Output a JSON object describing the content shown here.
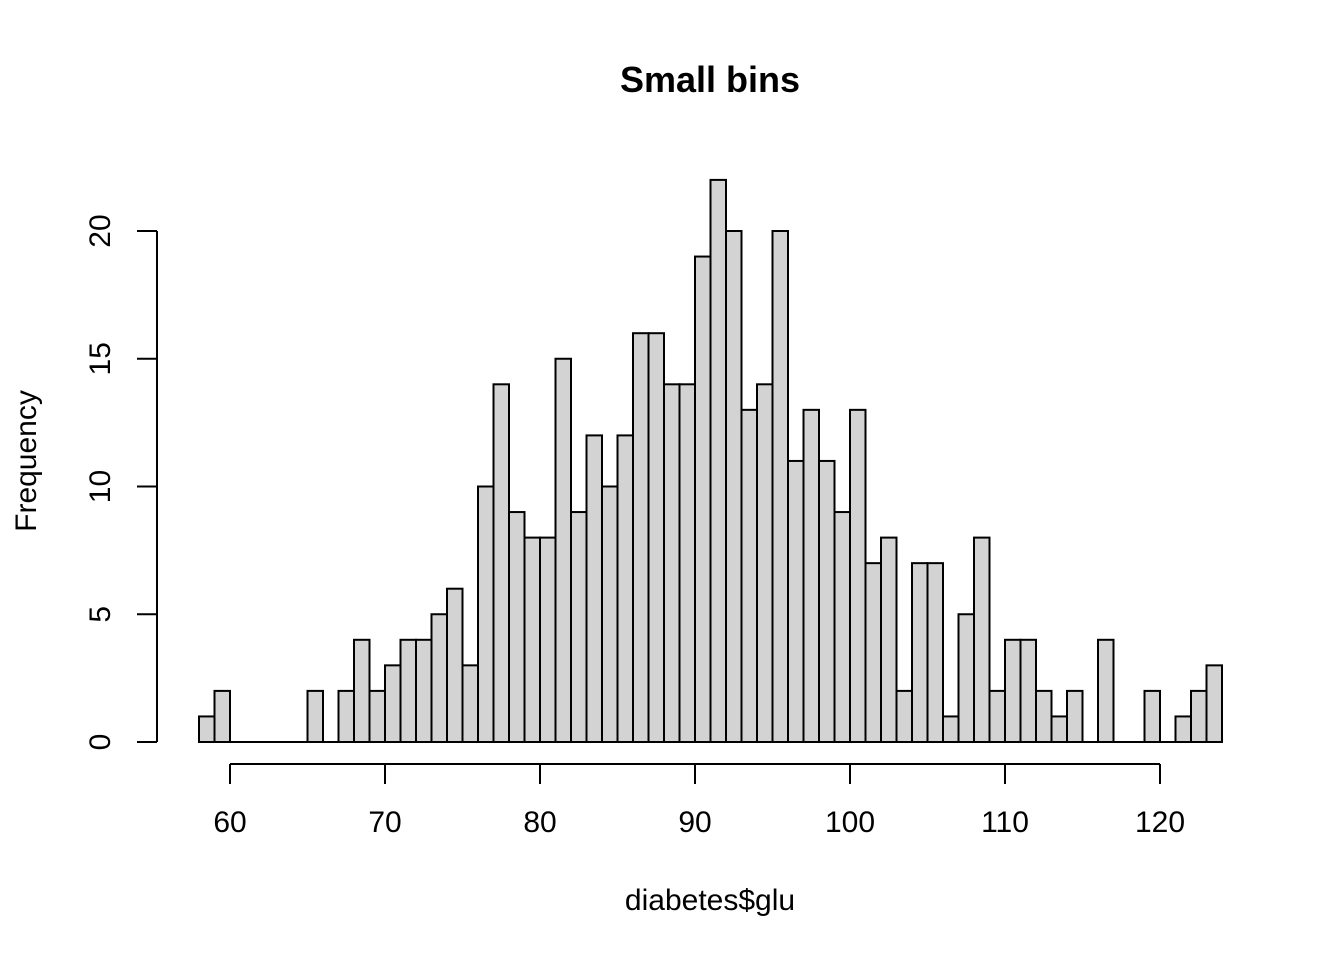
{
  "chart_data": {
    "type": "bar",
    "title": "Small bins",
    "xlabel": "diabetes$glu",
    "ylabel": "Frequency",
    "bin_width": 1,
    "bin_start": 58,
    "values": [
      1,
      2,
      0,
      0,
      0,
      0,
      0,
      2,
      0,
      2,
      4,
      2,
      3,
      4,
      4,
      5,
      6,
      3,
      10,
      14,
      9,
      8,
      8,
      15,
      9,
      12,
      10,
      12,
      16,
      16,
      14,
      14,
      19,
      22,
      20,
      13,
      14,
      20,
      11,
      13,
      11,
      9,
      13,
      7,
      8,
      2,
      7,
      7,
      1,
      5,
      8,
      2,
      4,
      4,
      2,
      1,
      2,
      0,
      4,
      0,
      0,
      2,
      0,
      1,
      2,
      3
    ],
    "xlim": [
      58,
      124
    ],
    "ylim": [
      0,
      22
    ],
    "xticks": [
      60,
      70,
      80,
      90,
      100,
      110,
      120
    ],
    "xtick_labels": [
      "60",
      "70",
      "80",
      "90",
      "100",
      "110",
      "120"
    ],
    "yticks": [
      0,
      5,
      10,
      15,
      20
    ],
    "ytick_labels": [
      "0",
      "5",
      "10",
      "15",
      "20"
    ],
    "bar_fill": "#d3d3d3",
    "bar_stroke": "#000000",
    "grid": false,
    "legend": "none"
  }
}
